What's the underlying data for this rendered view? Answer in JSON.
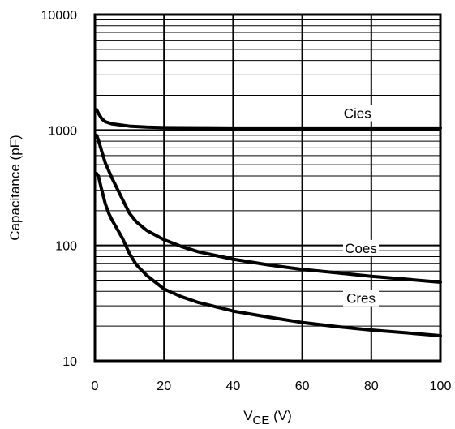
{
  "chart_data": {
    "type": "line",
    "xlabel": "V",
    "xlabel_subscript": "CE",
    "xlabel_unit": " (V)",
    "ylabel": "Capacitance (pF)",
    "xlim": [
      0,
      100
    ],
    "ylim": [
      10,
      10000
    ],
    "yscale": "log",
    "grid": true,
    "x_ticks": [
      0,
      20,
      40,
      60,
      80,
      100
    ],
    "x_tick_labels": [
      "0",
      "20",
      "40",
      "60",
      "80",
      "100"
    ],
    "y_ticks": [
      10,
      100,
      1000,
      10000
    ],
    "y_tick_labels": [
      "10",
      "100",
      "1000",
      "10000"
    ],
    "series": [
      {
        "name": "Cies",
        "label_x": 76,
        "label_y": 1400,
        "x": [
          0.5,
          1,
          2,
          3,
          5,
          8,
          10,
          15,
          20,
          30,
          40,
          60,
          80,
          100
        ],
        "y": [
          1500,
          1400,
          1250,
          1180,
          1130,
          1100,
          1080,
          1060,
          1050,
          1045,
          1040,
          1040,
          1040,
          1040
        ]
      },
      {
        "name": "Coes",
        "label_x": 77,
        "label_y": 95,
        "x": [
          0.5,
          1,
          2,
          3,
          5,
          8,
          10,
          12,
          15,
          20,
          25,
          30,
          40,
          50,
          60,
          70,
          80,
          90,
          100
        ],
        "y": [
          900,
          820,
          650,
          520,
          380,
          250,
          190,
          160,
          135,
          112,
          98,
          88,
          76,
          68,
          62,
          58,
          54,
          51,
          48
        ]
      },
      {
        "name": "Cres",
        "label_x": 77,
        "label_y": 35,
        "x": [
          0.5,
          1,
          2,
          3,
          4,
          5,
          7,
          8,
          10,
          12,
          15,
          20,
          25,
          30,
          40,
          50,
          60,
          70,
          80,
          90,
          100
        ],
        "y": [
          420,
          400,
          300,
          230,
          190,
          165,
          130,
          115,
          85,
          68,
          55,
          42,
          36,
          32,
          27,
          24,
          21.5,
          19.8,
          18.5,
          17.5,
          16.5
        ]
      }
    ]
  }
}
